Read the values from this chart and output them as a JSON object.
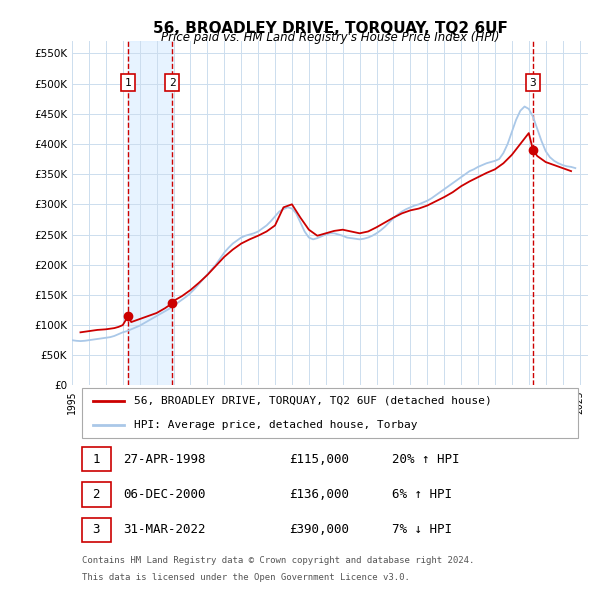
{
  "title": "56, BROADLEY DRIVE, TORQUAY, TQ2 6UF",
  "subtitle": "Price paid vs. HM Land Registry's House Price Index (HPI)",
  "legend_line1": "56, BROADLEY DRIVE, TORQUAY, TQ2 6UF (detached house)",
  "legend_line2": "HPI: Average price, detached house, Torbay",
  "footnote1": "Contains HM Land Registry data © Crown copyright and database right 2024.",
  "footnote2": "This data is licensed under the Open Government Licence v3.0.",
  "sale_color": "#cc0000",
  "hpi_color": "#aac8e8",
  "vline_color_sale": "#cc0000",
  "vline_color_hpi": "#aac8e8",
  "shade_color": "#ddeeff",
  "ylim": [
    0,
    570000
  ],
  "yticks": [
    0,
    50000,
    100000,
    150000,
    200000,
    250000,
    300000,
    350000,
    400000,
    450000,
    500000,
    550000
  ],
  "ytick_labels": [
    "£0",
    "£50K",
    "£100K",
    "£150K",
    "£200K",
    "£250K",
    "£300K",
    "£350K",
    "£400K",
    "£450K",
    "£500K",
    "£550K"
  ],
  "xlim_start": 1995.0,
  "xlim_end": 2025.5,
  "xticks": [
    1995,
    1996,
    1997,
    1998,
    1999,
    2000,
    2001,
    2002,
    2003,
    2004,
    2005,
    2006,
    2007,
    2008,
    2009,
    2010,
    2011,
    2012,
    2013,
    2014,
    2015,
    2016,
    2017,
    2018,
    2019,
    2020,
    2021,
    2022,
    2023,
    2024,
    2025
  ],
  "sales": [
    {
      "date_x": 1998.32,
      "price": 115000,
      "label": "1"
    },
    {
      "date_x": 2000.92,
      "price": 136000,
      "label": "2"
    },
    {
      "date_x": 2022.25,
      "price": 390000,
      "label": "3"
    }
  ],
  "table_rows": [
    {
      "num": "1",
      "date": "27-APR-1998",
      "price": "£115,000",
      "hpi": "20% ↑ HPI"
    },
    {
      "num": "2",
      "date": "06-DEC-2000",
      "price": "£136,000",
      "hpi": "6% ↑ HPI"
    },
    {
      "num": "3",
      "date": "31-MAR-2022",
      "price": "£390,000",
      "hpi": "7% ↓ HPI"
    }
  ],
  "hpi_x": [
    1995.0,
    1995.25,
    1995.5,
    1995.75,
    1996.0,
    1996.25,
    1996.5,
    1996.75,
    1997.0,
    1997.25,
    1997.5,
    1997.75,
    1998.0,
    1998.25,
    1998.5,
    1998.75,
    1999.0,
    1999.25,
    1999.5,
    1999.75,
    2000.0,
    2000.25,
    2000.5,
    2000.75,
    2001.0,
    2001.25,
    2001.5,
    2001.75,
    2002.0,
    2002.25,
    2002.5,
    2002.75,
    2003.0,
    2003.25,
    2003.5,
    2003.75,
    2004.0,
    2004.25,
    2004.5,
    2004.75,
    2005.0,
    2005.25,
    2005.5,
    2005.75,
    2006.0,
    2006.25,
    2006.5,
    2006.75,
    2007.0,
    2007.25,
    2007.5,
    2007.75,
    2008.0,
    2008.25,
    2008.5,
    2008.75,
    2009.0,
    2009.25,
    2009.5,
    2009.75,
    2010.0,
    2010.25,
    2010.5,
    2010.75,
    2011.0,
    2011.25,
    2011.5,
    2011.75,
    2012.0,
    2012.25,
    2012.5,
    2012.75,
    2013.0,
    2013.25,
    2013.5,
    2013.75,
    2014.0,
    2014.25,
    2014.5,
    2014.75,
    2015.0,
    2015.25,
    2015.5,
    2015.75,
    2016.0,
    2016.25,
    2016.5,
    2016.75,
    2017.0,
    2017.25,
    2017.5,
    2017.75,
    2018.0,
    2018.25,
    2018.5,
    2018.75,
    2019.0,
    2019.25,
    2019.5,
    2019.75,
    2020.0,
    2020.25,
    2020.5,
    2020.75,
    2021.0,
    2021.25,
    2021.5,
    2021.75,
    2022.0,
    2022.25,
    2022.5,
    2022.75,
    2023.0,
    2023.25,
    2023.5,
    2023.75,
    2024.0,
    2024.25,
    2024.5,
    2024.75
  ],
  "hpi_y": [
    75000,
    74000,
    73500,
    74000,
    75000,
    76000,
    77000,
    78000,
    79000,
    80000,
    82000,
    85000,
    88000,
    90000,
    93000,
    96000,
    99000,
    103000,
    107000,
    111000,
    115000,
    119000,
    123000,
    127000,
    132000,
    137000,
    142000,
    147000,
    153000,
    160000,
    168000,
    176000,
    184000,
    192000,
    200000,
    210000,
    220000,
    228000,
    235000,
    240000,
    245000,
    248000,
    250000,
    252000,
    255000,
    260000,
    265000,
    272000,
    280000,
    288000,
    292000,
    295000,
    293000,
    285000,
    270000,
    255000,
    245000,
    242000,
    244000,
    247000,
    250000,
    252000,
    252000,
    250000,
    248000,
    245000,
    244000,
    243000,
    242000,
    243000,
    245000,
    248000,
    252000,
    257000,
    263000,
    270000,
    277000,
    283000,
    288000,
    292000,
    295000,
    298000,
    300000,
    303000,
    306000,
    310000,
    315000,
    320000,
    325000,
    330000,
    335000,
    340000,
    345000,
    350000,
    355000,
    358000,
    362000,
    365000,
    368000,
    370000,
    372000,
    375000,
    385000,
    400000,
    420000,
    440000,
    455000,
    462000,
    458000,
    445000,
    425000,
    405000,
    388000,
    378000,
    372000,
    368000,
    365000,
    363000,
    362000,
    360000
  ],
  "sale_x": [
    1995.5,
    1996.0,
    1996.5,
    1997.0,
    1997.5,
    1997.75,
    1998.0,
    1998.32,
    1998.5,
    1999.0,
    1999.5,
    2000.0,
    2000.5,
    2000.92,
    2001.0,
    2001.5,
    2002.0,
    2002.5,
    2003.0,
    2003.5,
    2004.0,
    2004.5,
    2005.0,
    2005.5,
    2006.0,
    2006.5,
    2007.0,
    2007.25,
    2007.5,
    2008.0,
    2008.5,
    2009.0,
    2009.5,
    2010.0,
    2010.5,
    2011.0,
    2011.5,
    2012.0,
    2012.5,
    2013.0,
    2013.5,
    2014.0,
    2014.5,
    2015.0,
    2015.5,
    2016.0,
    2016.5,
    2017.0,
    2017.5,
    2018.0,
    2018.5,
    2019.0,
    2019.5,
    2020.0,
    2020.5,
    2021.0,
    2021.5,
    2022.0,
    2022.25,
    2022.5,
    2023.0,
    2023.5,
    2024.0,
    2024.5
  ],
  "sale_y": [
    88000,
    90000,
    92000,
    93000,
    95000,
    97000,
    100000,
    115000,
    105000,
    110000,
    115000,
    120000,
    128000,
    136000,
    140000,
    148000,
    158000,
    170000,
    183000,
    198000,
    213000,
    225000,
    235000,
    242000,
    248000,
    255000,
    265000,
    280000,
    295000,
    300000,
    278000,
    258000,
    248000,
    252000,
    256000,
    258000,
    255000,
    252000,
    255000,
    262000,
    270000,
    278000,
    285000,
    290000,
    293000,
    298000,
    305000,
    312000,
    320000,
    330000,
    338000,
    345000,
    352000,
    358000,
    368000,
    382000,
    400000,
    418000,
    390000,
    380000,
    370000,
    365000,
    360000,
    355000
  ]
}
